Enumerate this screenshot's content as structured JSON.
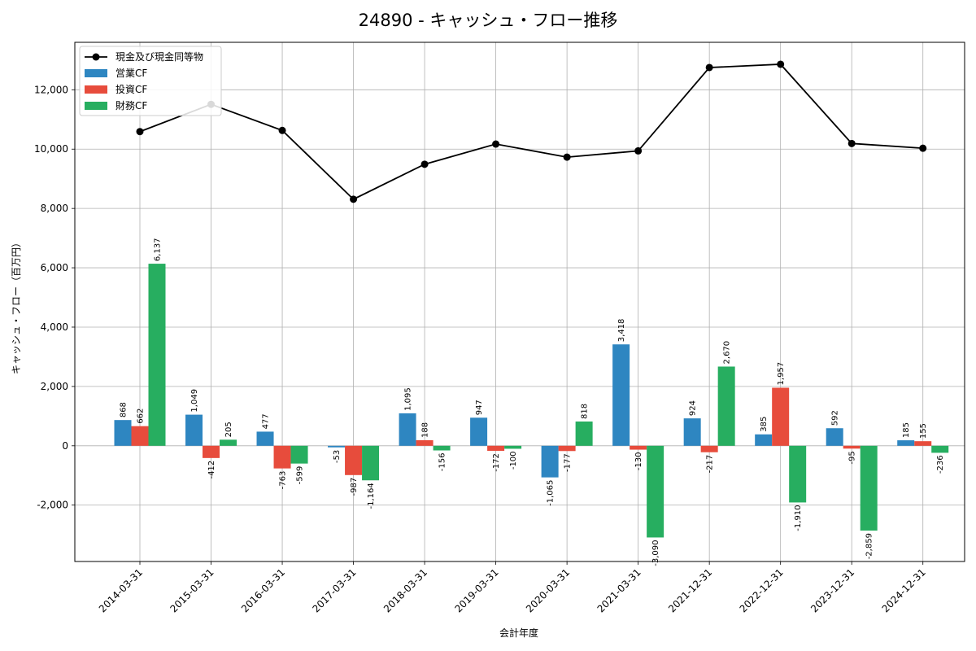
{
  "chart_data": {
    "type": "bar",
    "title": "24890 - キャッシュ・フロー推移",
    "xlabel": "会計年度",
    "ylabel": "キャッシュ・フロー（百万円）",
    "categories": [
      "2014-03-31",
      "2015-03-31",
      "2016-03-31",
      "2017-03-31",
      "2018-03-31",
      "2019-03-31",
      "2020-03-31",
      "2021-03-31",
      "2021-12-31",
      "2022-12-31",
      "2023-12-31",
      "2024-12-31"
    ],
    "ylim": [
      -3900,
      13600
    ],
    "yticks": [
      -2000,
      0,
      2000,
      4000,
      6000,
      8000,
      10000,
      12000
    ],
    "ytick_labels": [
      "-2,000",
      "0",
      "2,000",
      "4,000",
      "6,000",
      "8,000",
      "10,000",
      "12,000"
    ],
    "grid": true,
    "legend_position": "top-left",
    "series": [
      {
        "name": "営業CF",
        "type": "bar",
        "color": "#2e86c1",
        "values": [
          868,
          1049,
          477,
          -53,
          1095,
          947,
          -1065,
          3418,
          924,
          385,
          592,
          185
        ],
        "labels": [
          "868",
          "1,049",
          "477",
          "-53",
          "1,095",
          "947",
          "-1,065",
          "3,418",
          "924",
          "385",
          "592",
          "185"
        ]
      },
      {
        "name": "投資CF",
        "type": "bar",
        "color": "#e74c3c",
        "values": [
          662,
          -412,
          -763,
          -987,
          188,
          -172,
          -177,
          -130,
          -217,
          1957,
          -95,
          155
        ],
        "labels": [
          "662",
          "-412",
          "-763",
          "-987",
          "188",
          "-172",
          "-177",
          "-130",
          "-217",
          "1,957",
          "-95",
          "155"
        ]
      },
      {
        "name": "財務CF",
        "type": "bar",
        "color": "#27ae60",
        "values": [
          6137,
          205,
          -599,
          -1164,
          -156,
          -100,
          818,
          -3090,
          2670,
          -1910,
          -2859,
          -236
        ],
        "labels": [
          "6,137",
          "205",
          "-599",
          "-1,164",
          "-156",
          "-100",
          "818",
          "-3,090",
          "2,670",
          "-1,910",
          "-2,859",
          "-236"
        ]
      },
      {
        "name": "現金及び現金同等物",
        "type": "line",
        "color": "#000000",
        "values": [
          10590,
          11510,
          10630,
          8310,
          9490,
          10170,
          9730,
          9940,
          12750,
          12860,
          10190,
          10030
        ]
      }
    ]
  }
}
